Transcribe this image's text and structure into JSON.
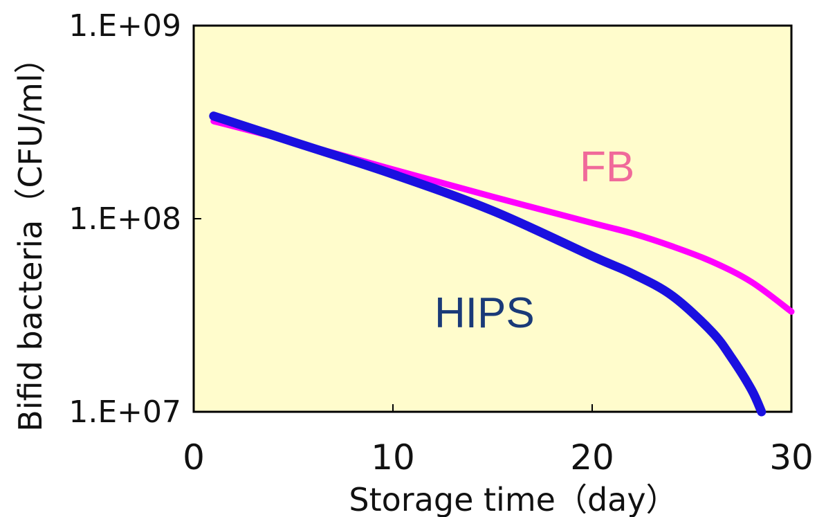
{
  "chart_data": {
    "type": "line",
    "title": "",
    "xlabel": "Storage time（day）",
    "ylabel": "Bifid bacteria（CFU/ml）",
    "xlim": [
      0,
      30
    ],
    "ylim": [
      10000000,
      1000000000
    ],
    "yscale": "log",
    "xticks": [
      0,
      10,
      20,
      30
    ],
    "xtick_labels": [
      "0",
      "10",
      "20",
      "30"
    ],
    "yticks": [
      10000000,
      100000000,
      1000000000
    ],
    "ytick_labels": [
      "1.E+07",
      "1.E+08",
      "1.E+09"
    ],
    "grid": false,
    "plot_background": "#fffccc",
    "series": [
      {
        "name": "FB",
        "color": "#ff00ff",
        "label_color": "#f06a9a",
        "x": [
          1,
          5,
          10,
          15,
          20,
          22,
          24,
          26,
          28,
          30
        ],
        "y": [
          320000000,
          250000000,
          180000000,
          130000000,
          95000000,
          84000000,
          72000000,
          60000000,
          47000000,
          33000000
        ]
      },
      {
        "name": "HIPS",
        "color": "#1a10e0",
        "label_color": "#1a3a78",
        "x": [
          1,
          5,
          10,
          15,
          20,
          22,
          24,
          26,
          27,
          28,
          28.5
        ],
        "y": [
          340000000,
          250000000,
          170000000,
          110000000,
          64000000,
          52000000,
          40000000,
          26000000,
          19000000,
          13000000,
          10000000
        ]
      }
    ]
  }
}
